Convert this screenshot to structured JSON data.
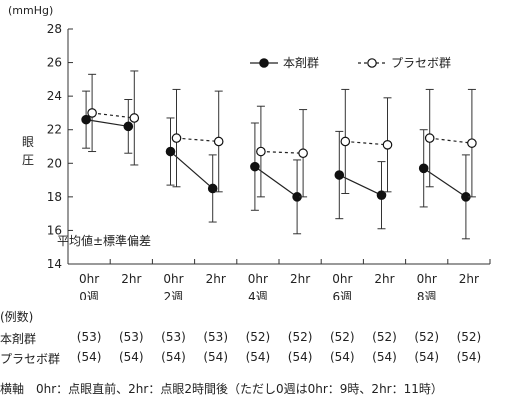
{
  "chart_data": {
    "type": "line",
    "y_unit": "(mmHg)",
    "ylabel": "眼圧",
    "ylim": [
      14,
      28
    ],
    "yticks": [
      14,
      16,
      18,
      20,
      22,
      24,
      26,
      28
    ],
    "categories": [
      {
        "line1": "0hr",
        "line2": "0週"
      },
      {
        "line1": "2hr",
        "line2": ""
      },
      {
        "line1": "0hr",
        "line2": "2週"
      },
      {
        "line1": "2hr",
        "line2": ""
      },
      {
        "line1": "0hr",
        "line2": "4週"
      },
      {
        "line1": "2hr",
        "line2": ""
      },
      {
        "line1": "0hr",
        "line2": "6週"
      },
      {
        "line1": "2hr",
        "line2": ""
      },
      {
        "line1": "0hr",
        "line2": "8週"
      },
      {
        "line1": "2hr",
        "line2": ""
      }
    ],
    "series": [
      {
        "name": "本剤群",
        "marker": "filled",
        "line_style": "solid",
        "values": [
          22.6,
          22.2,
          20.7,
          18.5,
          19.8,
          18.0,
          19.3,
          18.1,
          19.7,
          18.0
        ],
        "sd": [
          1.7,
          1.6,
          2.0,
          2.0,
          2.6,
          2.2,
          2.6,
          2.0,
          2.3,
          2.5
        ]
      },
      {
        "name": "プラセボ群",
        "marker": "open",
        "line_style": "dashed",
        "values": [
          23.0,
          22.7,
          21.5,
          21.3,
          20.7,
          20.6,
          21.3,
          21.1,
          21.5,
          21.2
        ],
        "sd": [
          2.3,
          2.8,
          2.9,
          3.0,
          2.7,
          2.6,
          3.1,
          2.8,
          2.9,
          3.2
        ]
      }
    ],
    "annotation": "平均値±標準偏差",
    "legend": "top-right"
  },
  "counts_table": {
    "header": "(例数)",
    "rows": [
      {
        "label": "本剤群",
        "values": [
          "(53)",
          "(53)",
          "(53)",
          "(53)",
          "(52)",
          "(52)",
          "(52)",
          "(52)",
          "(52)",
          "(52)"
        ]
      },
      {
        "label": "プラセボ群",
        "values": [
          "(54)",
          "(54)",
          "(54)",
          "(54)",
          "(54)",
          "(54)",
          "(54)",
          "(54)",
          "(54)",
          "(54)"
        ]
      }
    ]
  },
  "footnote": "横軸　0hr：点眼直前、2hr：点眼2時間後（ただし0週は0hr：9時、2hr：11時）"
}
